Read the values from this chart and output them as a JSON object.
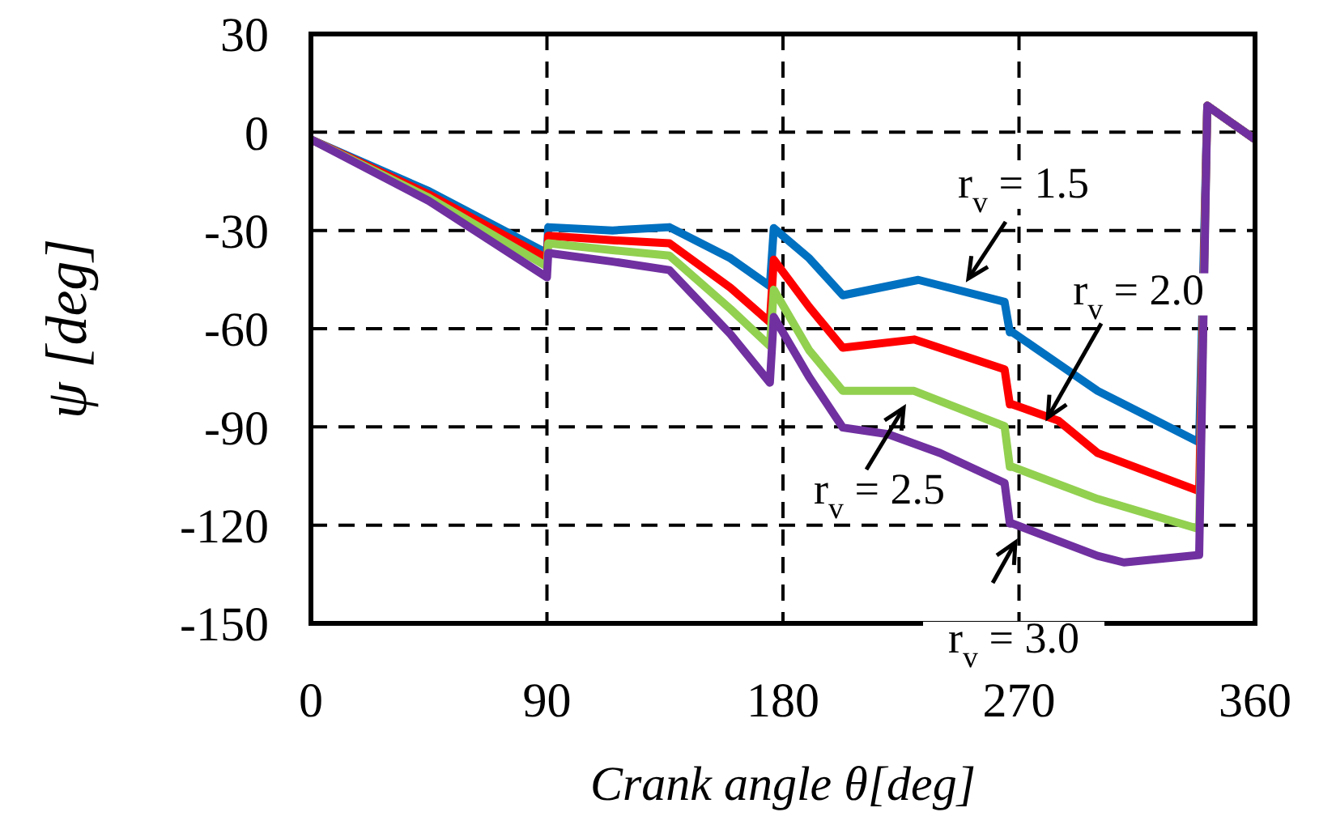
{
  "chart_data": {
    "type": "line",
    "xlabel": "Crank angle θ[deg]",
    "ylabel": "ψ [deg]",
    "xlim": [
      0,
      360
    ],
    "xticks": [
      0,
      90,
      180,
      270,
      360
    ],
    "ylim": [
      -150,
      30
    ],
    "yticks": [
      -150,
      -120,
      -90,
      -60,
      -30,
      0,
      30
    ],
    "grid": true,
    "line_style": "solid",
    "marker": "none",
    "legend": false,
    "series": [
      {
        "color": "#0070c0",
        "x": [
          0,
          45,
          90,
          90.5,
          115,
          136.7,
          160,
          175,
          176.5,
          190,
          202.8,
          231.6,
          264.5,
          266.5,
          267.5,
          300,
          338.7,
          341.8,
          360
        ],
        "values": [
          -2.2,
          -18,
          -36.9,
          -29,
          -30,
          -29,
          -38.5,
          -47,
          -29.3,
          -38.5,
          -49.8,
          -45.1,
          -51.8,
          -61.1,
          -61.1,
          -79,
          -94.7,
          8.1,
          -2.2
        ]
      },
      {
        "color": "#ff0000",
        "x": [
          0,
          45,
          90,
          90.5,
          115,
          136.7,
          160,
          175,
          176.5,
          190,
          202.8,
          230,
          264.5,
          266.5,
          267.5,
          285,
          300,
          338.7,
          341.8,
          360
        ],
        "values": [
          -2.2,
          -19,
          -38.5,
          -31.6,
          -33,
          -33.9,
          -47.5,
          -58,
          -38.9,
          -53.4,
          -65.8,
          -63.3,
          -72.4,
          -83.1,
          -83.1,
          -88.1,
          -98,
          -109.6,
          8.1,
          -2.2
        ]
      },
      {
        "color": "#92d050",
        "x": [
          0,
          45,
          90,
          90.5,
          115,
          136.7,
          160,
          175,
          176.5,
          190,
          202.8,
          230,
          264.5,
          266.5,
          267.5,
          300,
          338.7,
          341.8,
          360
        ],
        "values": [
          -2.2,
          -20,
          -41,
          -33.9,
          -36,
          -37.7,
          -54,
          -65.3,
          -48.1,
          -66.6,
          -79,
          -79,
          -89.8,
          -102.2,
          -102.2,
          -112,
          -121.2,
          8.1,
          -2.2
        ]
      },
      {
        "color": "#7030a0",
        "x": [
          0,
          45,
          90,
          90.5,
          115,
          136.7,
          160,
          175,
          176.5,
          190,
          202.8,
          220,
          240,
          264.5,
          266.5,
          267.5,
          300,
          310,
          338.7,
          341.8,
          360
        ],
        "values": [
          -2.2,
          -21,
          -44.3,
          -36.9,
          -39.5,
          -42.1,
          -61.7,
          -76.5,
          -56.4,
          -74.8,
          -90.2,
          -92.2,
          -98,
          -107.1,
          -119.5,
          -119.5,
          -129.4,
          -131.4,
          -129.1,
          8.1,
          -2.2
        ]
      }
    ],
    "annotations": [
      "r$_{v}$ = 1.5",
      {
        "text": "r$_{v}$ = 2.0",
        "x": 281,
        "y": -87.1
      },
      "r$_{v}$ = 2.5",
      "r$_{v}$ = 3.0"
    ]
  }
}
